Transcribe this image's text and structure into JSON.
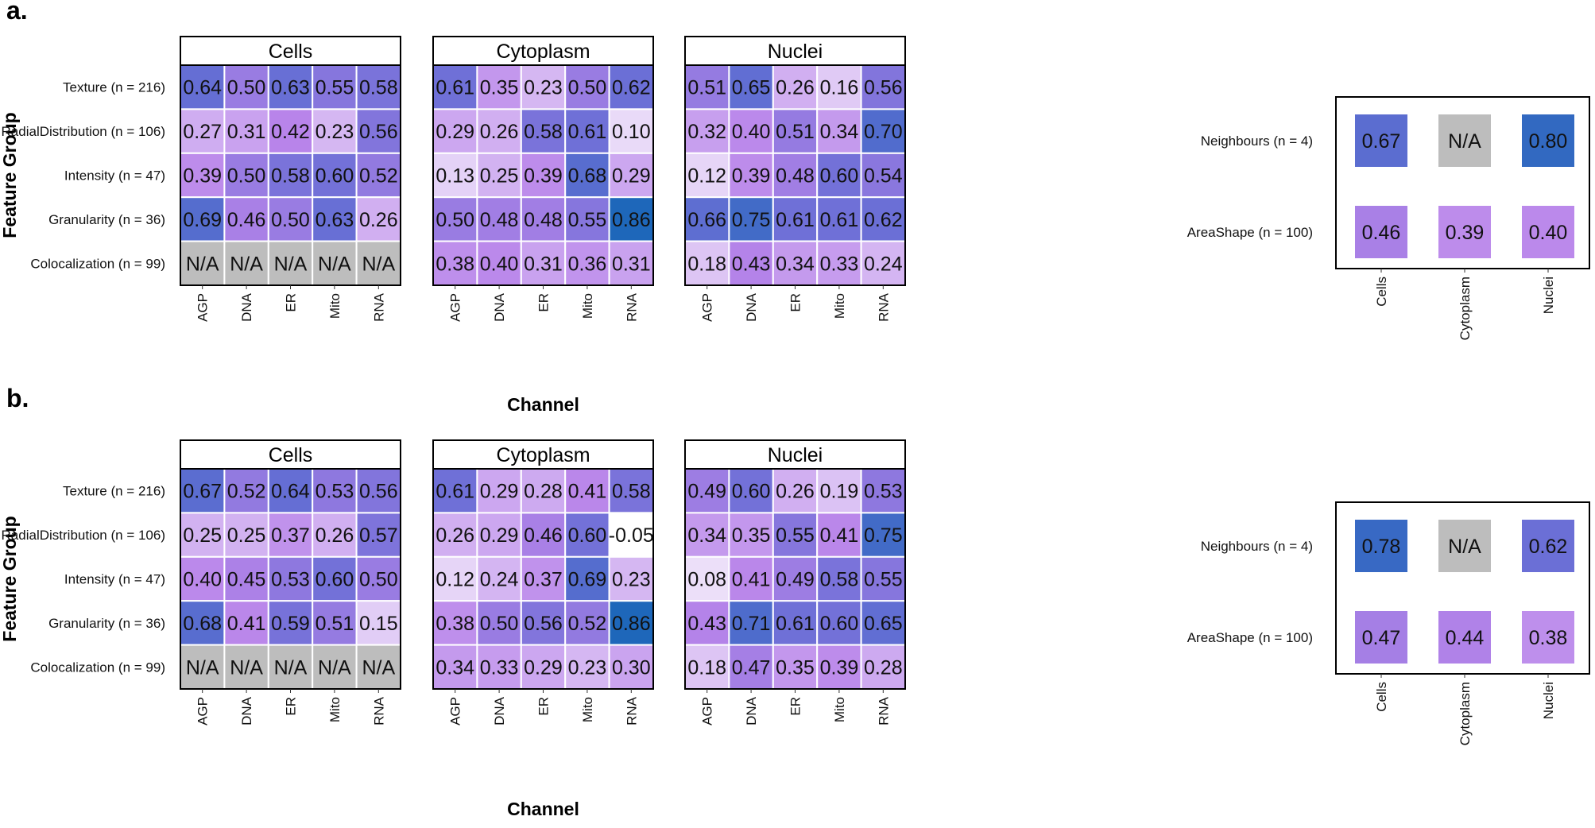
{
  "chart_data": [
    {
      "type": "heatmap",
      "panel_label": "a.",
      "ylabel": "Feature Group",
      "xlabel": "Channel",
      "facets": [
        "Cells",
        "Cytoplasm",
        "Nuclei"
      ],
      "rows": [
        "Texture (n = 216)",
        "RadialDistribution (n = 106)",
        "Intensity (n = 47)",
        "Granularity (n = 36)",
        "Colocalization (n = 99)"
      ],
      "columns": [
        "AGP",
        "DNA",
        "ER",
        "Mito",
        "RNA"
      ],
      "values": {
        "Cells": [
          [
            "0.64",
            "0.50",
            "0.63",
            "0.55",
            "0.58"
          ],
          [
            "0.27",
            "0.31",
            "0.42",
            "0.23",
            "0.56"
          ],
          [
            "0.39",
            "0.50",
            "0.58",
            "0.60",
            "0.52"
          ],
          [
            "0.69",
            "0.46",
            "0.50",
            "0.63",
            "0.26"
          ],
          [
            "N/A",
            "N/A",
            "N/A",
            "N/A",
            "N/A"
          ]
        ],
        "Cytoplasm": [
          [
            "0.61",
            "0.35",
            "0.23",
            "0.50",
            "0.62"
          ],
          [
            "0.29",
            "0.26",
            "0.58",
            "0.61",
            "0.10"
          ],
          [
            "0.13",
            "0.25",
            "0.39",
            "0.68",
            "0.29"
          ],
          [
            "0.50",
            "0.48",
            "0.48",
            "0.55",
            "0.86"
          ],
          [
            "0.38",
            "0.40",
            "0.31",
            "0.36",
            "0.31"
          ]
        ],
        "Nuclei": [
          [
            "0.51",
            "0.65",
            "0.26",
            "0.16",
            "0.56"
          ],
          [
            "0.32",
            "0.40",
            "0.51",
            "0.34",
            "0.70"
          ],
          [
            "0.12",
            "0.39",
            "0.48",
            "0.60",
            "0.54"
          ],
          [
            "0.66",
            "0.75",
            "0.61",
            "0.61",
            "0.62"
          ],
          [
            "0.18",
            "0.43",
            "0.34",
            "0.33",
            "0.24"
          ]
        ]
      },
      "side": {
        "rows": [
          "Neighbours (n = 4)",
          "AreaShape (n = 100)"
        ],
        "columns": [
          "Cells",
          "Cytoplasm",
          "Nuclei"
        ],
        "values": [
          [
            "0.67",
            "N/A",
            "0.80"
          ],
          [
            "0.46",
            "0.39",
            "0.40"
          ]
        ]
      }
    },
    {
      "type": "heatmap",
      "panel_label": "b.",
      "ylabel": "Feature Group",
      "xlabel": "Channel",
      "facets": [
        "Cells",
        "Cytoplasm",
        "Nuclei"
      ],
      "rows": [
        "Texture (n = 216)",
        "RadialDistribution (n = 106)",
        "Intensity (n = 47)",
        "Granularity (n = 36)",
        "Colocalization (n = 99)"
      ],
      "columns": [
        "AGP",
        "DNA",
        "ER",
        "Mito",
        "RNA"
      ],
      "values": {
        "Cells": [
          [
            "0.67",
            "0.52",
            "0.64",
            "0.53",
            "0.56"
          ],
          [
            "0.25",
            "0.25",
            "0.37",
            "0.26",
            "0.57"
          ],
          [
            "0.40",
            "0.45",
            "0.53",
            "0.60",
            "0.50"
          ],
          [
            "0.68",
            "0.41",
            "0.59",
            "0.51",
            "0.15"
          ],
          [
            "N/A",
            "N/A",
            "N/A",
            "N/A",
            "N/A"
          ]
        ],
        "Cytoplasm": [
          [
            "0.61",
            "0.29",
            "0.28",
            "0.41",
            "0.58"
          ],
          [
            "0.26",
            "0.29",
            "0.46",
            "0.60",
            "-0.05"
          ],
          [
            "0.12",
            "0.24",
            "0.37",
            "0.69",
            "0.23"
          ],
          [
            "0.38",
            "0.50",
            "0.56",
            "0.52",
            "0.86"
          ],
          [
            "0.34",
            "0.33",
            "0.29",
            "0.23",
            "0.30"
          ]
        ],
        "Nuclei": [
          [
            "0.49",
            "0.60",
            "0.26",
            "0.19",
            "0.53"
          ],
          [
            "0.34",
            "0.35",
            "0.55",
            "0.41",
            "0.75"
          ],
          [
            "0.08",
            "0.41",
            "0.49",
            "0.58",
            "0.55"
          ],
          [
            "0.43",
            "0.71",
            "0.61",
            "0.60",
            "0.65"
          ],
          [
            "0.18",
            "0.47",
            "0.35",
            "0.39",
            "0.28"
          ]
        ]
      },
      "side": {
        "rows": [
          "Neighbours (n = 4)",
          "AreaShape (n = 100)"
        ],
        "columns": [
          "Cells",
          "Cytoplasm",
          "Nuclei"
        ],
        "values": [
          [
            "0.78",
            "N/A",
            "0.62"
          ],
          [
            "0.47",
            "0.44",
            "0.38"
          ]
        ]
      }
    }
  ],
  "colors": {
    "low": "#ffffff",
    "mid_light": "#e6d5f7",
    "mid": "#b884ea",
    "high": "#6b6fd6",
    "top": "#1866b8",
    "na": "#bdbdbd",
    "grid": "#ffffff",
    "border": "#000000"
  }
}
